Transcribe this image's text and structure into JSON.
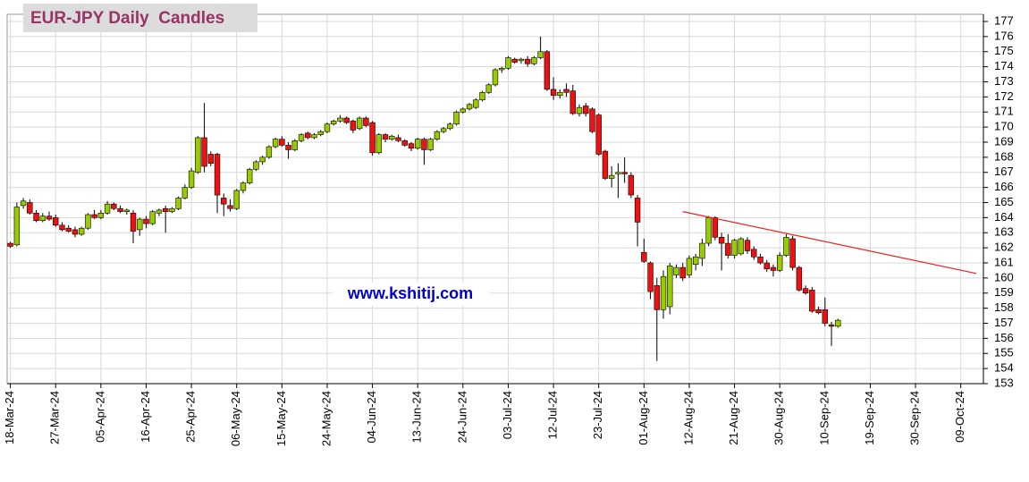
{
  "chart_data": {
    "type": "candlestick",
    "title": "EUR-JPY Daily  Candles",
    "watermark": "www.kshitij.com",
    "categories": [
      "18-Mar-24",
      null,
      null,
      null,
      null,
      null,
      null,
      "27-Mar-24",
      null,
      null,
      null,
      null,
      null,
      null,
      "05-Apr-24",
      null,
      null,
      null,
      null,
      null,
      null,
      "16-Apr-24",
      null,
      null,
      null,
      null,
      null,
      null,
      "25-Apr-24",
      null,
      null,
      null,
      null,
      null,
      null,
      "06-May-24",
      null,
      null,
      null,
      null,
      null,
      null,
      "15-May-24",
      null,
      null,
      null,
      null,
      null,
      null,
      "24-May-24",
      null,
      null,
      null,
      null,
      null,
      null,
      "04-Jun-24",
      null,
      null,
      null,
      null,
      null,
      null,
      "13-Jun-24",
      null,
      null,
      null,
      null,
      null,
      null,
      "24-Jun-24",
      null,
      null,
      null,
      null,
      null,
      null,
      "03-Jul-24",
      null,
      null,
      null,
      null,
      null,
      null,
      "12-Jul-24",
      null,
      null,
      null,
      null,
      null,
      null,
      "23-Jul-24",
      null,
      null,
      null,
      null,
      null,
      null,
      "01-Aug-24",
      null,
      null,
      null,
      null,
      null,
      null,
      "12-Aug-24",
      null,
      null,
      null,
      null,
      null,
      null,
      "21-Aug-24",
      null,
      null,
      null,
      null,
      null,
      null,
      "30-Aug-24",
      null,
      null,
      null,
      null,
      null,
      null,
      "10-Sep-24",
      null,
      null,
      null,
      null,
      null,
      null,
      "19-Sep-24",
      null,
      null,
      null,
      null,
      null,
      null,
      "30-Sep-24",
      null,
      null,
      null,
      null,
      null,
      null,
      "09-Oct-24",
      null,
      null,
      null
    ],
    "open": [
      162.3,
      162.2,
      164.8,
      165.0,
      164.3,
      163.8,
      164.1,
      164.0,
      163.5,
      163.3,
      163.2,
      162.9,
      163.3,
      164.2,
      164.0,
      164.3,
      164.9,
      164.6,
      164.4,
      164.3,
      163.2,
      163.9,
      163.6,
      164.3,
      164.6,
      164.4,
      164.6,
      165.3,
      166.0,
      167.0,
      169.3,
      168.2,
      168.2,
      165.3,
      164.8,
      164.6,
      165.8,
      166.3,
      167.2,
      167.7,
      168.0,
      168.7,
      169.2,
      168.8,
      168.5,
      169.1,
      169.6,
      169.3,
      169.5,
      169.7,
      170.2,
      170.4,
      170.6,
      170.4,
      169.9,
      170.6,
      170.3,
      168.3,
      169.5,
      169.2,
      169.3,
      169.1,
      168.9,
      168.6,
      169.2,
      168.5,
      169.2,
      169.7,
      169.9,
      170.2,
      171.0,
      171.2,
      171.3,
      171.8,
      172.3,
      172.8,
      173.8,
      173.9,
      174.5,
      174.4,
      174.5,
      174.2,
      174.6,
      175.0,
      172.5,
      172.1,
      172.5,
      172.4,
      170.9,
      171.4,
      171.2,
      170.8,
      168.4,
      166.6,
      166.9,
      167.0,
      166.8,
      165.3,
      161.7,
      161.0,
      159.5,
      157.9,
      158.1,
      160.2,
      160.7,
      160.2,
      160.9,
      161.3,
      162.3,
      164.0,
      162.7,
      162.3,
      161.5,
      161.6,
      162.5,
      161.9,
      161.4,
      161.0,
      160.7,
      160.5,
      161.5,
      162.6,
      160.7,
      159.3,
      159.2,
      157.9,
      157.9,
      156.9,
      156.8,
      null,
      null,
      null,
      null,
      null,
      null,
      null,
      null,
      null,
      null,
      null,
      null,
      null,
      null,
      null,
      null,
      null,
      null,
      null,
      null,
      null,
      null
    ],
    "high": [
      162.4,
      165.0,
      165.3,
      165.2,
      164.5,
      164.3,
      164.4,
      164.2,
      163.7,
      163.5,
      163.4,
      163.4,
      164.3,
      164.5,
      164.5,
      165.1,
      165.0,
      164.8,
      164.6,
      164.5,
      164.0,
      164.1,
      164.5,
      164.6,
      164.8,
      164.7,
      165.4,
      166.2,
      167.3,
      169.4,
      171.6,
      168.4,
      168.3,
      165.6,
      165.2,
      165.9,
      166.4,
      167.3,
      167.8,
      168.1,
      168.8,
      169.3,
      169.4,
      169.0,
      169.2,
      169.6,
      169.7,
      169.6,
      169.8,
      170.3,
      170.5,
      170.8,
      170.7,
      170.5,
      170.7,
      170.7,
      170.4,
      169.6,
      169.6,
      169.5,
      169.5,
      169.2,
      169.0,
      169.3,
      169.3,
      169.3,
      169.8,
      170.0,
      170.3,
      171.1,
      171.3,
      171.6,
      171.9,
      172.4,
      172.9,
      173.9,
      174.0,
      174.7,
      174.6,
      174.6,
      174.7,
      174.7,
      176.0,
      175.1,
      173.3,
      172.5,
      172.9,
      172.8,
      171.5,
      171.6,
      171.3,
      170.9,
      168.5,
      167.4,
      167.6,
      168.0,
      167.0,
      165.5,
      162.6,
      161.1,
      160.0,
      160.5,
      161.0,
      160.9,
      161.0,
      161.5,
      161.6,
      162.6,
      164.1,
      164.1,
      163.0,
      162.9,
      162.6,
      162.7,
      162.7,
      162.1,
      161.6,
      161.2,
      160.9,
      161.7,
      162.9,
      162.8,
      160.8,
      159.5,
      159.4,
      158.1,
      158.7,
      157.1,
      157.3,
      null,
      null,
      null,
      null,
      null,
      null,
      null,
      null,
      null,
      null,
      null,
      null,
      null,
      null,
      null,
      null,
      null,
      null,
      null,
      null,
      null,
      null
    ],
    "low": [
      162.0,
      162.1,
      164.6,
      164.2,
      163.7,
      163.7,
      163.8,
      163.4,
      163.1,
      163.0,
      162.7,
      162.8,
      163.2,
      163.9,
      163.9,
      164.2,
      164.5,
      164.3,
      164.2,
      162.3,
      162.8,
      163.3,
      163.5,
      164.1,
      163.0,
      164.3,
      164.5,
      165.2,
      165.9,
      166.9,
      167.0,
      167.4,
      164.3,
      164.1,
      164.4,
      164.5,
      165.6,
      166.2,
      167.1,
      167.5,
      167.9,
      168.6,
      168.7,
      167.9,
      168.4,
      169.0,
      169.2,
      169.2,
      169.4,
      169.6,
      170.1,
      170.3,
      170.2,
      169.6,
      169.8,
      170.0,
      168.1,
      168.2,
      169.0,
      169.1,
      169.0,
      168.7,
      168.4,
      168.5,
      167.5,
      168.4,
      169.1,
      169.6,
      169.8,
      170.1,
      170.9,
      171.1,
      171.2,
      171.7,
      172.2,
      172.7,
      173.6,
      173.8,
      174.2,
      174.2,
      174.0,
      174.1,
      174.5,
      172.4,
      171.8,
      171.9,
      172.0,
      170.8,
      170.7,
      170.7,
      169.6,
      168.1,
      166.5,
      166.0,
      165.3,
      166.3,
      165.3,
      162.1,
      161.0,
      158.6,
      154.5,
      157.3,
      157.6,
      160.0,
      159.8,
      160.0,
      160.5,
      160.8,
      162.1,
      162.5,
      160.5,
      161.3,
      161.3,
      161.5,
      161.6,
      161.2,
      160.9,
      160.4,
      160.1,
      160.4,
      161.4,
      160.5,
      159.1,
      158.9,
      157.7,
      157.6,
      156.8,
      155.5,
      156.7,
      null,
      null,
      null,
      null,
      null,
      null,
      null,
      null,
      null,
      null,
      null,
      null,
      null,
      null,
      null,
      null,
      null,
      null,
      null,
      null,
      null,
      null
    ],
    "close": [
      162.1,
      164.7,
      165.1,
      164.3,
      163.8,
      164.1,
      163.9,
      163.5,
      163.2,
      163.1,
      162.9,
      163.3,
      164.2,
      164.0,
      164.3,
      164.9,
      164.6,
      164.4,
      164.5,
      163.1,
      163.9,
      163.6,
      164.4,
      164.5,
      164.4,
      164.6,
      165.3,
      166.0,
      167.1,
      169.3,
      167.4,
      167.6,
      165.5,
      164.9,
      164.6,
      165.8,
      166.3,
      167.2,
      167.7,
      168.0,
      168.7,
      169.2,
      168.8,
      168.5,
      169.1,
      169.5,
      169.3,
      169.5,
      169.7,
      170.2,
      170.4,
      170.6,
      170.3,
      169.8,
      170.6,
      170.1,
      168.3,
      169.5,
      169.2,
      169.4,
      169.1,
      168.8,
      168.6,
      169.2,
      168.5,
      169.2,
      169.7,
      169.9,
      170.2,
      171.0,
      171.2,
      171.5,
      171.8,
      172.3,
      172.8,
      173.8,
      173.9,
      174.6,
      174.3,
      174.5,
      174.2,
      174.6,
      175.0,
      172.5,
      172.1,
      172.3,
      172.3,
      170.9,
      171.3,
      170.9,
      169.7,
      168.2,
      166.6,
      166.8,
      167.0,
      166.9,
      165.5,
      163.7,
      161.1,
      159.1,
      157.9,
      160.1,
      160.8,
      160.7,
      160.0,
      161.3,
      161.4,
      162.3,
      164.0,
      162.7,
      162.3,
      161.5,
      162.5,
      162.6,
      161.8,
      161.4,
      161.0,
      160.6,
      160.5,
      161.5,
      162.7,
      160.7,
      159.2,
      159.0,
      157.8,
      157.7,
      157.0,
      156.8,
      157.2,
      null,
      null,
      null,
      null,
      null,
      null,
      null,
      null,
      null,
      null,
      null,
      null,
      null,
      null,
      null,
      null,
      null,
      null,
      null,
      null,
      null,
      null
    ],
    "up_color": "#99cc00",
    "down_color": "#ee1111",
    "trendline": {
      "x": [
        104,
        149.4
      ],
      "y": [
        164.4,
        160.3
      ],
      "color": "#ee2222"
    },
    "ylim": [
      153,
      177
    ],
    "yticks": [
      153,
      154,
      155,
      156,
      157,
      158,
      159,
      160,
      161,
      162,
      163,
      164,
      165,
      166,
      167,
      168,
      169,
      170,
      171,
      172,
      173,
      174,
      175,
      176,
      177
    ],
    "grid": true
  }
}
